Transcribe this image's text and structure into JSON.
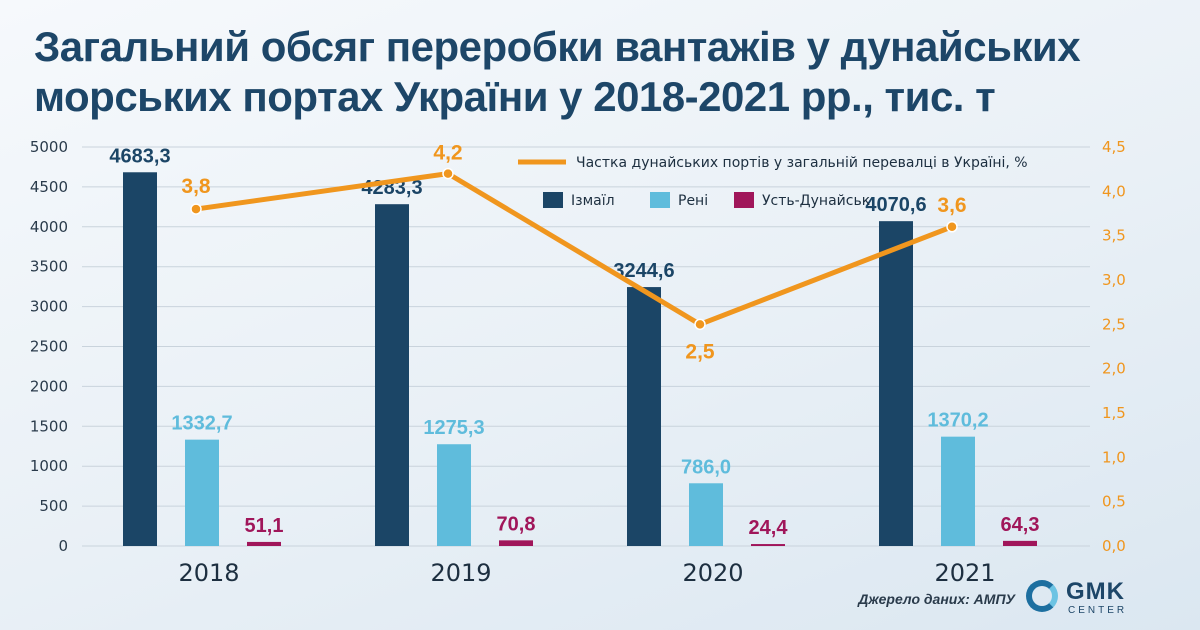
{
  "title": "Загальний обсяг переробки вантажів у дунайських морських портах України у 2018-2021 рр., тис. т",
  "source": "Джерело даних: АМПУ",
  "logo": {
    "main": "GMK",
    "sub": "CENTER"
  },
  "colors": {
    "izmail": "#1b4566",
    "reni": "#5fbcdc",
    "ust": "#a0165a",
    "line": "#f0961e",
    "grid": "#c9d3dc"
  },
  "chart_data": {
    "type": "bar",
    "categories": [
      "2018",
      "2019",
      "2020",
      "2021"
    ],
    "ylim": [
      0,
      5000
    ],
    "yticks": [
      "0",
      "500",
      "1000",
      "1500",
      "2000",
      "2500",
      "3000",
      "3500",
      "4000",
      "4500",
      "5000"
    ],
    "y2lim": [
      0,
      4.5
    ],
    "y2ticks": [
      "0,0",
      "0,5",
      "1,0",
      "1,5",
      "2,0",
      "2,5",
      "3,0",
      "3,5",
      "4,0",
      "4,5"
    ],
    "grid": true,
    "legend": "top-right",
    "series": [
      {
        "name": "Ізмаїл",
        "values": [
          4683.3,
          4283.3,
          3244.6,
          4070.6
        ],
        "labels": [
          "4683,3",
          "4283,3",
          "3244,6",
          "4070,6"
        ]
      },
      {
        "name": "Рені",
        "values": [
          1332.7,
          1275.3,
          786.0,
          1370.2
        ],
        "labels": [
          "1332,7",
          "1275,3",
          "786,0",
          "1370,2"
        ]
      },
      {
        "name": "Усть-Дунайськ",
        "values": [
          51.1,
          70.8,
          24.4,
          64.3
        ],
        "labels": [
          "51,1",
          "70,8",
          "24,4",
          "64,3"
        ]
      }
    ],
    "line_series": {
      "name": "Частка дунайських портів у загальній перевалці в Україні, %",
      "values": [
        3.8,
        4.2,
        2.5,
        3.6
      ],
      "labels": [
        "3,8",
        "4,2",
        "2,5",
        "3,6"
      ]
    }
  }
}
